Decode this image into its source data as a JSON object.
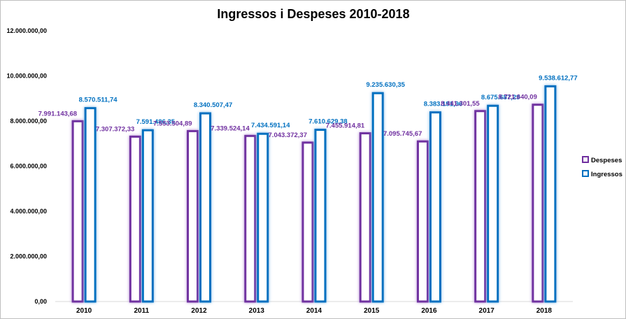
{
  "chart_data": {
    "type": "bar",
    "title": "Ingressos i Despeses 2010-2018",
    "categories": [
      "2010",
      "2011",
      "2012",
      "2013",
      "2014",
      "2015",
      "2016",
      "2017",
      "2018"
    ],
    "series": [
      {
        "name": "Despeses",
        "color": "#7030a0",
        "values": [
          7991143.68,
          7307372.33,
          7553504.89,
          7339524.14,
          7043372.37,
          7455914.81,
          7095745.67,
          8441301.55,
          8721640.09
        ],
        "labels": [
          "7.991.143,68",
          "7.307.372,33",
          "7.553.504,89",
          "7.339.524,14",
          "7.043.372,37",
          "7.455.914,81",
          "7.095.745,67",
          "8.441.301,55",
          "8.721.640,09"
        ]
      },
      {
        "name": "Ingressos",
        "color": "#0070c0",
        "values": [
          8570511.74,
          7591486.35,
          8340507.47,
          7434591.14,
          7610629.38,
          9235630.35,
          8383191.96,
          8675687.29,
          9538612.77
        ],
        "labels": [
          "8.570.511,74",
          "7.591.486,35",
          "8.340.507,47",
          "7.434.591,14",
          "7.610.629,38",
          "9.235.630,35",
          "8.383.191,96",
          "8.675.687,29",
          "9.538.612,77"
        ]
      }
    ],
    "ylim": [
      0,
      12000000
    ],
    "yticks": [
      0,
      2000000,
      4000000,
      6000000,
      8000000,
      10000000,
      12000000
    ],
    "ytick_labels": [
      "0,00",
      "2.000.000,00",
      "4.000.000,00",
      "6.000.000,00",
      "8.000.000,00",
      "10.000.000,00",
      "12.000.000,00"
    ],
    "xlabel": "",
    "ylabel": "",
    "grid": false,
    "legend": "right"
  }
}
